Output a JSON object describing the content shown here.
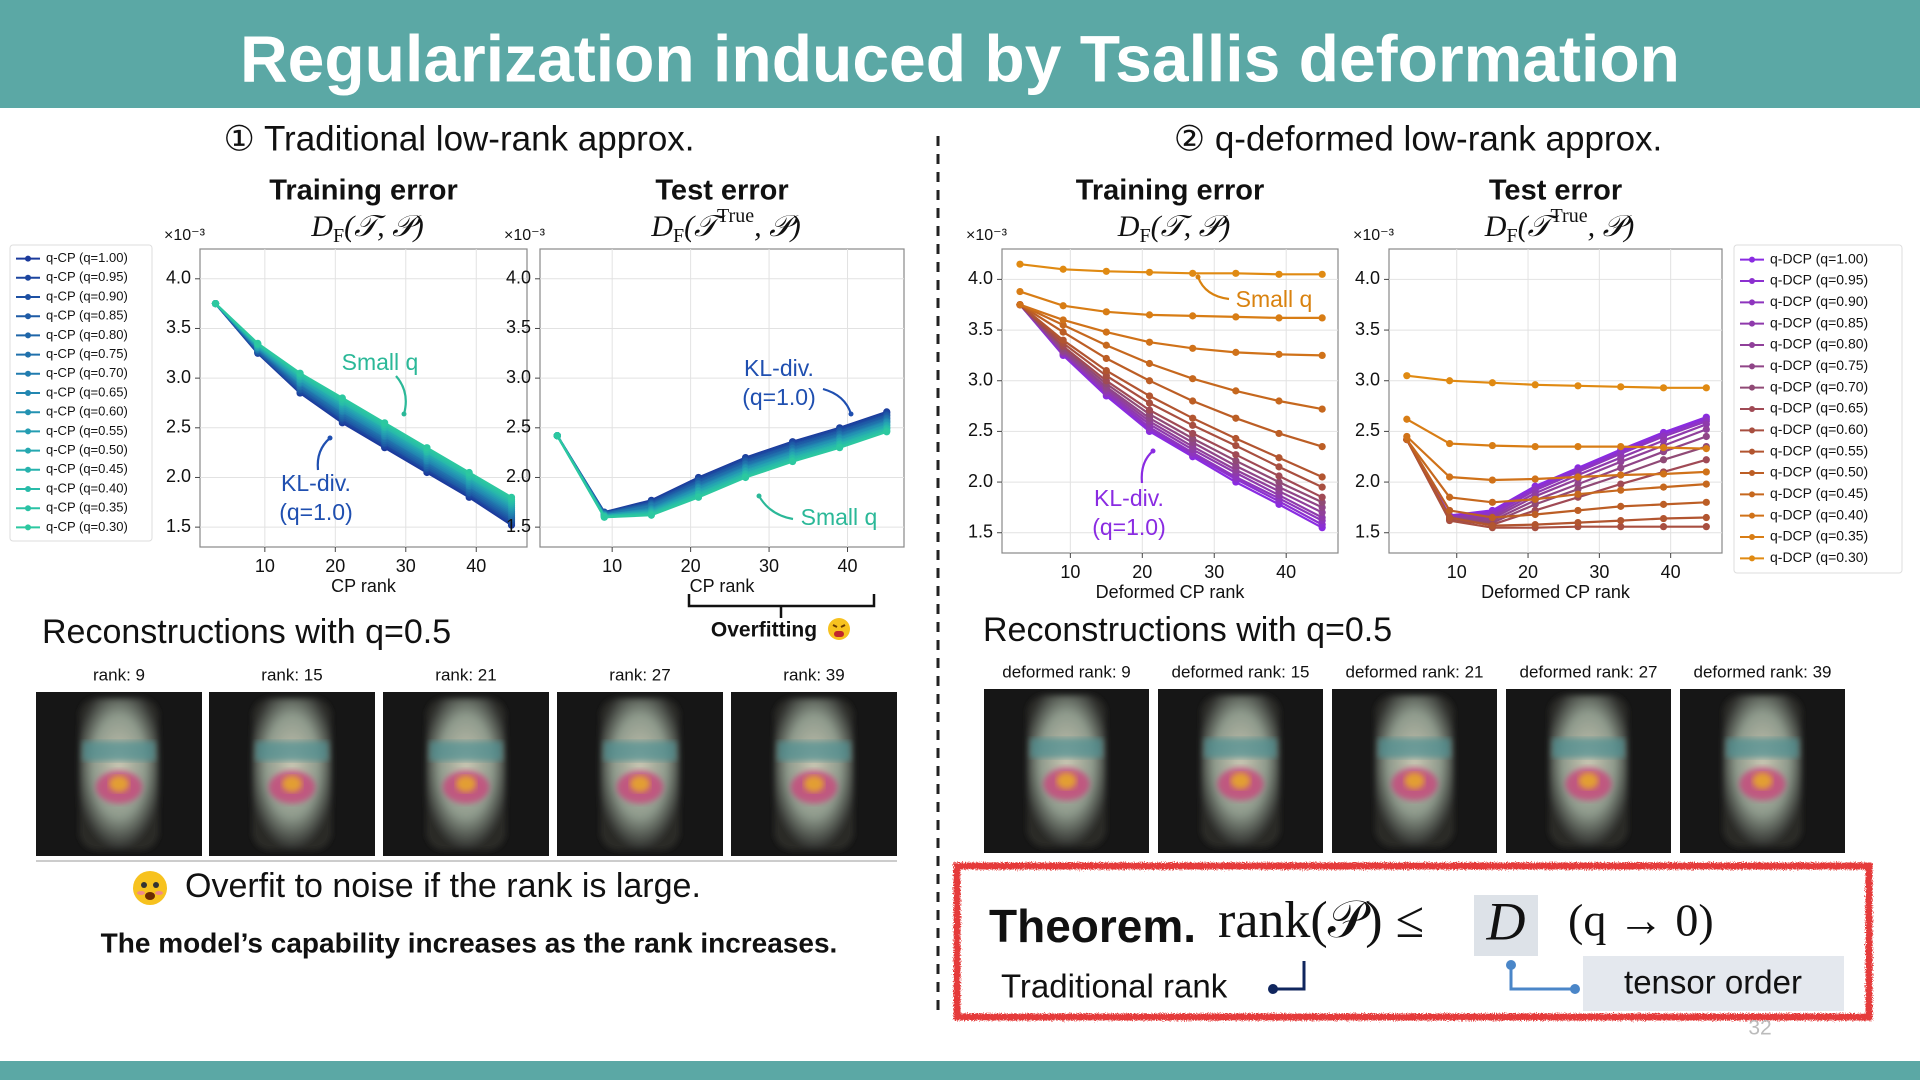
{
  "header": {
    "title": "Regularization induced by Tsallis deformation"
  },
  "left": {
    "heading": "① Traditional low-rank approx.",
    "recon_title": "Reconstructions with q=0.5",
    "recon_labels": [
      "rank: 9",
      "rank: 15",
      "rank: 21",
      "rank: 27",
      "rank: 39"
    ],
    "overfitting": "Overfitting",
    "note": "Overfit to noise if the rank is large.",
    "conclusion": "The model’s capability increases as the rank increases."
  },
  "right": {
    "heading": "② q-deformed low-rank approx.",
    "recon_title": "Reconstructions with q=0.5",
    "recon_labels": [
      "deformed rank: 9",
      "deformed rank: 15",
      "deformed rank: 21",
      "deformed rank: 27",
      "deformed rank: 39"
    ]
  },
  "theorem": {
    "label": "Theorem.",
    "statement": "rank(𝒫) ≤",
    "order": "D",
    "condition": "(q → 0)",
    "rank_note": "Traditional rank",
    "order_note": "tensor order"
  },
  "page_number": "32",
  "chart_data": [
    {
      "type": "line",
      "title": "Training error",
      "formula": {
        "base": "D",
        "sub": "F",
        "args": "(𝒯, 𝒫)"
      },
      "xlabel": "CP rank",
      "scale_label": "×10⁻³",
      "x": [
        3,
        9,
        15,
        21,
        27,
        33,
        39,
        45
      ],
      "xlim": [
        0.8,
        47.2
      ],
      "ylim": [
        1.3,
        4.3
      ],
      "xticks": [
        10,
        20,
        30,
        40
      ],
      "yticks": [
        1.5,
        {
          "value": 2,
          "label": "2.0"
        },
        2.5,
        {
          "value": 3,
          "label": "3.0"
        },
        3.5,
        {
          "value": 4,
          "label": "4.0"
        }
      ],
      "grid": true,
      "legend": "outside-left",
      "annotations": [
        {
          "lines": [
            "Small q"
          ],
          "color": "#2bb898"
        },
        {
          "lines": [
            "KL-div.",
            "(q=1.0)"
          ],
          "color": "#1f4fb0"
        }
      ],
      "series": [
        {
          "name": "q-CP (q=1.00)",
          "color": "#1b3a9c",
          "values": [
            3.75,
            3.25,
            2.85,
            2.55,
            2.3,
            2.05,
            1.8,
            1.52
          ]
        },
        {
          "name": "q-CP (q=0.95)",
          "color": "#1c459f",
          "values": [
            3.75,
            3.26,
            2.86,
            2.57,
            2.32,
            2.07,
            1.82,
            1.54
          ]
        },
        {
          "name": "q-CP (q=0.90)",
          "color": "#1d50a3",
          "values": [
            3.75,
            3.26,
            2.88,
            2.59,
            2.34,
            2.09,
            1.84,
            1.56
          ]
        },
        {
          "name": "q-CP (q=0.85)",
          "color": "#1e5ba6",
          "values": [
            3.75,
            3.27,
            2.89,
            2.6,
            2.35,
            2.1,
            1.85,
            1.58
          ]
        },
        {
          "name": "q-CP (q=0.80)",
          "color": "#1f66a9",
          "values": [
            3.75,
            3.28,
            2.91,
            2.62,
            2.37,
            2.12,
            1.87,
            1.6
          ]
        },
        {
          "name": "q-CP (q=0.75)",
          "color": "#2071ac",
          "values": [
            3.75,
            3.29,
            2.92,
            2.64,
            2.39,
            2.14,
            1.89,
            1.62
          ]
        },
        {
          "name": "q-CP (q=0.70)",
          "color": "#217caf",
          "values": [
            3.75,
            3.29,
            2.94,
            2.66,
            2.41,
            2.16,
            1.91,
            1.64
          ]
        },
        {
          "name": "q-CP (q=0.65)",
          "color": "#2287b1",
          "values": [
            3.75,
            3.3,
            2.95,
            2.67,
            2.42,
            2.17,
            1.92,
            1.66
          ]
        },
        {
          "name": "q-CP (q=0.60)",
          "color": "#2392b2",
          "values": [
            3.75,
            3.31,
            2.96,
            2.69,
            2.44,
            2.19,
            1.94,
            1.68
          ]
        },
        {
          "name": "q-CP (q=0.55)",
          "color": "#249db2",
          "values": [
            3.75,
            3.31,
            2.98,
            2.71,
            2.46,
            2.21,
            1.96,
            1.7
          ]
        },
        {
          "name": "q-CP (q=0.50)",
          "color": "#25a8b0",
          "values": [
            3.75,
            3.32,
            2.99,
            2.73,
            2.48,
            2.23,
            1.98,
            1.72
          ]
        },
        {
          "name": "q-CP (q=0.45)",
          "color": "#27b2ad",
          "values": [
            3.75,
            3.33,
            3.01,
            2.75,
            2.5,
            2.25,
            2.0,
            1.74
          ]
        },
        {
          "name": "q-CP (q=0.40)",
          "color": "#28bba9",
          "values": [
            3.75,
            3.34,
            3.02,
            2.76,
            2.51,
            2.26,
            2.01,
            1.76
          ]
        },
        {
          "name": "q-CP (q=0.35)",
          "color": "#2ac2a5",
          "values": [
            3.75,
            3.34,
            3.04,
            2.78,
            2.53,
            2.28,
            2.03,
            1.78
          ]
        },
        {
          "name": "q-CP (q=0.30)",
          "color": "#2cc8a0",
          "values": [
            3.75,
            3.35,
            3.05,
            2.8,
            2.55,
            2.3,
            2.05,
            1.8
          ]
        }
      ]
    },
    {
      "type": "line",
      "title": "Test error",
      "formula": {
        "base": "D",
        "sub": "F",
        "args": "(𝒯",
        "sup": "True",
        "rest": ", 𝒫)"
      },
      "xlabel": "CP rank",
      "scale_label": "×10⁻³",
      "x": [
        3,
        9,
        15,
        21,
        27,
        33,
        39,
        45
      ],
      "xlim": [
        0.8,
        47.2
      ],
      "ylim": [
        1.3,
        4.3
      ],
      "xticks": [
        10,
        20,
        30,
        40
      ],
      "yticks": [
        1.5,
        {
          "value": 2,
          "label": "2.0"
        },
        2.5,
        {
          "value": 3,
          "label": "3.0"
        },
        3.5,
        {
          "value": 4,
          "label": "4.0"
        }
      ],
      "grid": true,
      "annotations": [
        {
          "lines": [
            "KL-div.",
            "(q=1.0)"
          ],
          "color": "#1f4fb0"
        },
        {
          "lines": [
            "Small q"
          ],
          "color": "#2bb898"
        }
      ],
      "series": [
        {
          "color": "#1b3a9c",
          "values": [
            2.42,
            1.65,
            1.77,
            2.0,
            2.2,
            2.36,
            2.5,
            2.66
          ]
        },
        {
          "color": "#1c459f",
          "values": [
            2.42,
            1.65,
            1.76,
            1.99,
            2.19,
            2.35,
            2.49,
            2.65
          ]
        },
        {
          "color": "#1d50a3",
          "values": [
            2.42,
            1.64,
            1.75,
            1.97,
            2.17,
            2.33,
            2.47,
            2.63
          ]
        },
        {
          "color": "#1e5ba6",
          "values": [
            2.42,
            1.64,
            1.74,
            1.96,
            2.16,
            2.32,
            2.46,
            2.62
          ]
        },
        {
          "color": "#1f66a9",
          "values": [
            2.42,
            1.64,
            1.73,
            1.94,
            2.14,
            2.3,
            2.44,
            2.6
          ]
        },
        {
          "color": "#2071ac",
          "values": [
            2.42,
            1.63,
            1.72,
            1.93,
            2.13,
            2.29,
            2.43,
            2.59
          ]
        },
        {
          "color": "#217caf",
          "values": [
            2.42,
            1.63,
            1.71,
            1.91,
            2.11,
            2.27,
            2.41,
            2.57
          ]
        },
        {
          "color": "#2287b1",
          "values": [
            2.42,
            1.62,
            1.69,
            1.9,
            2.1,
            2.26,
            2.4,
            2.56
          ]
        },
        {
          "color": "#2392b2",
          "values": [
            2.42,
            1.62,
            1.68,
            1.89,
            2.09,
            2.25,
            2.39,
            2.55
          ]
        },
        {
          "color": "#249db2",
          "values": [
            2.42,
            1.62,
            1.67,
            1.87,
            2.07,
            2.23,
            2.37,
            2.53
          ]
        },
        {
          "color": "#25a8b0",
          "values": [
            2.42,
            1.61,
            1.66,
            1.86,
            2.06,
            2.22,
            2.36,
            2.52
          ]
        },
        {
          "color": "#27b2ad",
          "values": [
            2.42,
            1.61,
            1.65,
            1.84,
            2.04,
            2.2,
            2.34,
            2.5
          ]
        },
        {
          "color": "#28bba9",
          "values": [
            2.42,
            1.61,
            1.64,
            1.83,
            2.03,
            2.19,
            2.33,
            2.49
          ]
        },
        {
          "color": "#2ac2a5",
          "values": [
            2.42,
            1.6,
            1.63,
            1.81,
            2.01,
            2.17,
            2.31,
            2.47
          ]
        },
        {
          "color": "#2cc8a0",
          "values": [
            2.42,
            1.6,
            1.62,
            1.8,
            2.0,
            2.16,
            2.3,
            2.46
          ]
        }
      ]
    },
    {
      "type": "line",
      "title": "Training error",
      "formula": {
        "base": "D",
        "sub": "F",
        "args": "(𝒯, 𝒫)"
      },
      "xlabel": "Deformed CP rank",
      "scale_label": "×10⁻³",
      "x": [
        3,
        9,
        15,
        21,
        27,
        33,
        39,
        45
      ],
      "xlim": [
        0.5,
        47.2
      ],
      "ylim": [
        1.3,
        4.3
      ],
      "xticks": [
        10,
        20,
        30,
        40
      ],
      "yticks": [
        1.5,
        {
          "value": 2,
          "label": "2.0"
        },
        2.5,
        {
          "value": 3,
          "label": "3.0"
        },
        3.5,
        {
          "value": 4,
          "label": "4.0"
        }
      ],
      "grid": true,
      "annotations": [
        {
          "lines": [
            "Small q"
          ],
          "color": "#d9820f"
        },
        {
          "lines": [
            "KL-div.",
            "(q=1.0)"
          ],
          "color": "#8a2be2"
        }
      ],
      "series": [
        {
          "color": "#8a2be2",
          "values": [
            3.75,
            3.25,
            2.85,
            2.5,
            2.25,
            2.0,
            1.78,
            1.55
          ]
        },
        {
          "color": "#8c30d0",
          "values": [
            3.75,
            3.26,
            2.87,
            2.52,
            2.27,
            2.03,
            1.81,
            1.58
          ]
        },
        {
          "color": "#8e35be",
          "values": [
            3.75,
            3.27,
            2.88,
            2.54,
            2.29,
            2.05,
            1.84,
            1.62
          ]
        },
        {
          "color": "#8f3aac",
          "values": [
            3.75,
            3.28,
            2.9,
            2.57,
            2.32,
            2.09,
            1.87,
            1.65
          ]
        },
        {
          "color": "#90409a",
          "values": [
            3.75,
            3.29,
            2.92,
            2.6,
            2.35,
            2.12,
            1.91,
            1.7
          ]
        },
        {
          "color": "#904588",
          "values": [
            3.75,
            3.3,
            2.94,
            2.63,
            2.39,
            2.16,
            1.95,
            1.75
          ]
        },
        {
          "color": "#904a76",
          "values": [
            3.75,
            3.32,
            2.97,
            2.67,
            2.43,
            2.21,
            2.0,
            1.8
          ]
        },
        {
          "color": "#a04a55",
          "values": [
            3.75,
            3.34,
            3.0,
            2.71,
            2.48,
            2.27,
            2.06,
            1.85
          ]
        },
        {
          "color": "#a84f40",
          "values": [
            3.75,
            3.37,
            3.05,
            2.78,
            2.56,
            2.36,
            2.15,
            1.95
          ]
        },
        {
          "color": "#b25530",
          "values": [
            3.75,
            3.4,
            3.1,
            2.85,
            2.63,
            2.43,
            2.24,
            2.05
          ]
        },
        {
          "color": "#bc5e25",
          "values": [
            3.75,
            3.48,
            3.22,
            3.0,
            2.8,
            2.63,
            2.48,
            2.35
          ]
        },
        {
          "color": "#c6681e",
          "values": [
            3.75,
            3.55,
            3.35,
            3.17,
            3.02,
            2.9,
            2.8,
            2.72
          ]
        },
        {
          "color": "#d07219",
          "values": [
            3.75,
            3.6,
            3.48,
            3.38,
            3.32,
            3.28,
            3.26,
            3.25
          ]
        },
        {
          "color": "#d87d15",
          "values": [
            3.88,
            3.74,
            3.68,
            3.65,
            3.64,
            3.63,
            3.62,
            3.62
          ]
        },
        {
          "color": "#e08a12",
          "values": [
            4.15,
            4.1,
            4.08,
            4.07,
            4.06,
            4.06,
            4.05,
            4.05
          ]
        }
      ]
    },
    {
      "type": "line",
      "title": "Test error",
      "formula": {
        "base": "D",
        "sub": "F",
        "args": "(𝒯",
        "sup": "True",
        "rest": ", 𝒫)"
      },
      "xlabel": "Deformed CP rank",
      "scale_label": "×10⁻³",
      "x": [
        3,
        9,
        15,
        21,
        27,
        33,
        39,
        45
      ],
      "xlim": [
        0.5,
        47.2
      ],
      "ylim": [
        1.3,
        4.3
      ],
      "xticks": [
        10,
        20,
        30,
        40
      ],
      "yticks": [
        1.5,
        {
          "value": 2,
          "label": "2.0"
        },
        2.5,
        {
          "value": 3,
          "label": "3.0"
        },
        3.5,
        {
          "value": 4,
          "label": "4.0"
        }
      ],
      "grid": true,
      "legend": "outside-right",
      "series": [
        {
          "name": "q-DCP (q=1.00)",
          "color": "#8a2be2",
          "values": [
            2.42,
            1.67,
            1.72,
            1.96,
            2.14,
            2.32,
            2.49,
            2.64
          ]
        },
        {
          "name": "q-DCP (q=0.95)",
          "color": "#8c30d0",
          "values": [
            2.42,
            1.66,
            1.7,
            1.94,
            2.12,
            2.3,
            2.47,
            2.62
          ]
        },
        {
          "name": "q-DCP (q=0.90)",
          "color": "#8e35be",
          "values": [
            2.42,
            1.66,
            1.68,
            1.92,
            2.1,
            2.28,
            2.45,
            2.6
          ]
        },
        {
          "name": "q-DCP (q=0.85)",
          "color": "#8f3aac",
          "values": [
            2.42,
            1.65,
            1.66,
            1.89,
            2.07,
            2.24,
            2.41,
            2.57
          ]
        },
        {
          "name": "q-DCP (q=0.80)",
          "color": "#90409a",
          "values": [
            2.42,
            1.65,
            1.64,
            1.86,
            2.03,
            2.2,
            2.36,
            2.52
          ]
        },
        {
          "name": "q-DCP (q=0.75)",
          "color": "#904588",
          "values": [
            2.42,
            1.64,
            1.62,
            1.82,
            1.98,
            2.14,
            2.3,
            2.45
          ]
        },
        {
          "name": "q-DCP (q=0.70)",
          "color": "#904a76",
          "values": [
            2.42,
            1.63,
            1.6,
            1.78,
            1.93,
            2.07,
            2.22,
            2.35
          ]
        },
        {
          "name": "q-DCP (q=0.65)",
          "color": "#a04a55",
          "values": [
            2.42,
            1.63,
            1.58,
            1.72,
            1.85,
            1.98,
            2.1,
            2.22
          ]
        },
        {
          "name": "q-DCP (q=0.60)",
          "color": "#a84f40",
          "values": [
            2.42,
            1.62,
            1.55,
            1.55,
            1.56,
            1.56,
            1.56,
            1.56
          ]
        },
        {
          "name": "q-DCP (q=0.55)",
          "color": "#b25530",
          "values": [
            2.42,
            1.65,
            1.57,
            1.58,
            1.6,
            1.62,
            1.64,
            1.65
          ]
        },
        {
          "name": "q-DCP (q=0.50)",
          "color": "#bc5e25",
          "values": [
            2.42,
            1.72,
            1.65,
            1.68,
            1.72,
            1.76,
            1.78,
            1.8
          ]
        },
        {
          "name": "q-DCP (q=0.45)",
          "color": "#c6681e",
          "values": [
            2.42,
            1.85,
            1.8,
            1.83,
            1.88,
            1.92,
            1.95,
            1.98
          ]
        },
        {
          "name": "q-DCP (q=0.40)",
          "color": "#d07219",
          "values": [
            2.45,
            2.05,
            2.02,
            2.03,
            2.05,
            2.07,
            2.08,
            2.1
          ]
        },
        {
          "name": "q-DCP (q=0.35)",
          "color": "#d87d15",
          "values": [
            2.62,
            2.38,
            2.36,
            2.35,
            2.35,
            2.35,
            2.34,
            2.33
          ]
        },
        {
          "name": "q-DCP (q=0.30)",
          "color": "#e08a12",
          "values": [
            3.05,
            3.0,
            2.98,
            2.96,
            2.95,
            2.94,
            2.93,
            2.93
          ]
        }
      ]
    }
  ]
}
